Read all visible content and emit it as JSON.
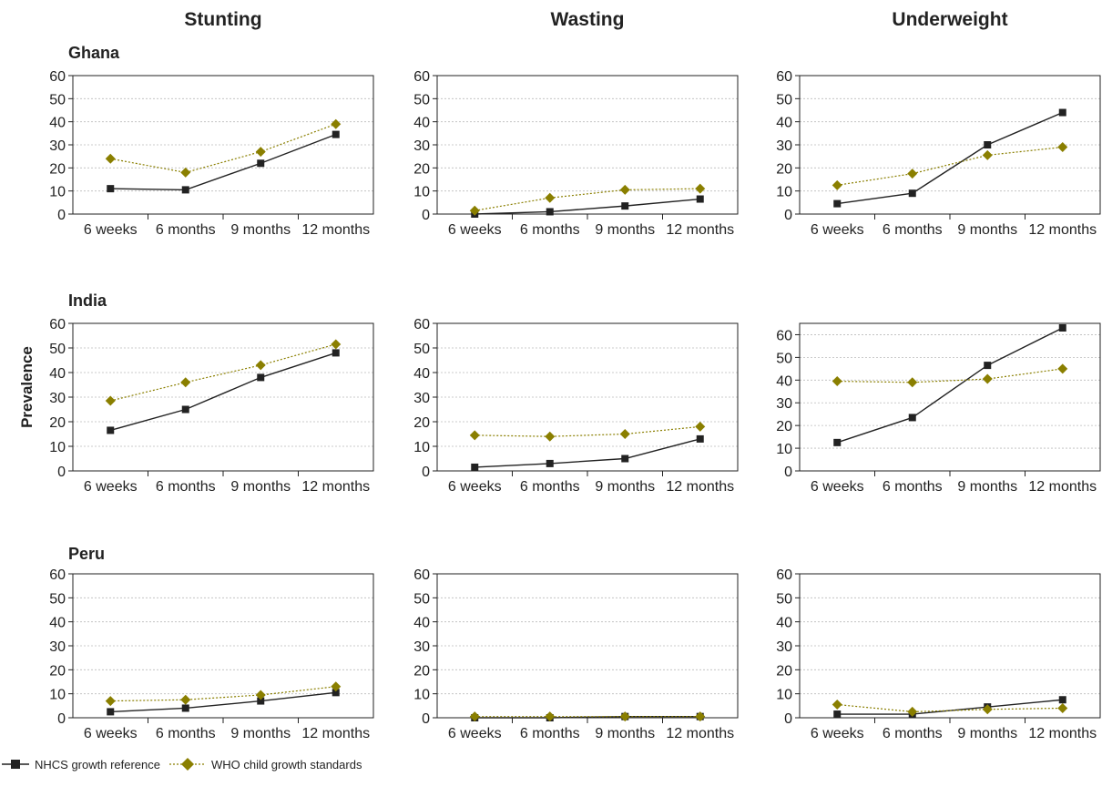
{
  "ylabel": "Prevalence",
  "columns": [
    "Stunting",
    "Wasting",
    "Underweight"
  ],
  "rows": [
    "Ghana",
    "India",
    "Peru"
  ],
  "colors": {
    "nhcs": "#222222",
    "who": "#8a7f00"
  },
  "legend": [
    {
      "key": "nhcs",
      "label": "NHCS growth reference"
    },
    {
      "key": "who",
      "label": "WHO child growth standards"
    }
  ],
  "chart_data": [
    {
      "type": "line",
      "title": "Stunting",
      "subtitle": "Ghana",
      "x": [
        "6 weeks",
        "6 months",
        "9 months",
        "12 months"
      ],
      "ylim": [
        0,
        60
      ],
      "yticks": [
        0,
        10,
        20,
        30,
        40,
        50,
        60
      ],
      "series": [
        {
          "name": "NHCS growth reference",
          "values": [
            11,
            10.5,
            22,
            34.5
          ]
        },
        {
          "name": "WHO child growth standards",
          "values": [
            24,
            18,
            27,
            39
          ]
        }
      ]
    },
    {
      "type": "line",
      "title": "Wasting",
      "subtitle": "Ghana",
      "x": [
        "6 weeks",
        "6 months",
        "9 months",
        "12 months"
      ],
      "ylim": [
        0,
        60
      ],
      "yticks": [
        0,
        10,
        20,
        30,
        40,
        50,
        60
      ],
      "series": [
        {
          "name": "NHCS growth reference",
          "values": [
            0,
            1,
            3.5,
            6.5
          ]
        },
        {
          "name": "WHO child growth standards",
          "values": [
            1.5,
            7,
            10.5,
            11
          ]
        }
      ]
    },
    {
      "type": "line",
      "title": "Underweight",
      "subtitle": "Ghana",
      "x": [
        "6 weeks",
        "6 months",
        "9 months",
        "12 months"
      ],
      "ylim": [
        0,
        60
      ],
      "yticks": [
        0,
        10,
        20,
        30,
        40,
        50,
        60
      ],
      "series": [
        {
          "name": "NHCS growth reference",
          "values": [
            4.5,
            9,
            30,
            44
          ]
        },
        {
          "name": "WHO child growth standards",
          "values": [
            12.5,
            17.5,
            25.5,
            29
          ]
        }
      ]
    },
    {
      "type": "line",
      "title": "Stunting",
      "subtitle": "India",
      "x": [
        "6 weeks",
        "6 months",
        "9 months",
        "12 months"
      ],
      "ylim": [
        0,
        60
      ],
      "yticks": [
        0,
        10,
        20,
        30,
        40,
        50,
        60
      ],
      "series": [
        {
          "name": "NHCS growth reference",
          "values": [
            16.5,
            25,
            38,
            48
          ]
        },
        {
          "name": "WHO child growth standards",
          "values": [
            28.5,
            36,
            43,
            51.5
          ]
        }
      ]
    },
    {
      "type": "line",
      "title": "Wasting",
      "subtitle": "India",
      "x": [
        "6 weeks",
        "6 months",
        "9 months",
        "12 months"
      ],
      "ylim": [
        0,
        60
      ],
      "yticks": [
        0,
        10,
        20,
        30,
        40,
        50,
        60
      ],
      "series": [
        {
          "name": "NHCS growth reference",
          "values": [
            1.5,
            3,
            5,
            13
          ]
        },
        {
          "name": "WHO child growth standards",
          "values": [
            14.5,
            14,
            15,
            18
          ]
        }
      ]
    },
    {
      "type": "line",
      "title": "Underweight",
      "subtitle": "India",
      "x": [
        "6 weeks",
        "6 months",
        "9 months",
        "12 months"
      ],
      "ylim": [
        0,
        65
      ],
      "yticks": [
        0,
        10,
        20,
        30,
        40,
        50,
        60
      ],
      "series": [
        {
          "name": "NHCS growth reference",
          "values": [
            12.5,
            23.5,
            46.5,
            63
          ]
        },
        {
          "name": "WHO child growth standards",
          "values": [
            39.5,
            39,
            40.5,
            45
          ]
        }
      ]
    },
    {
      "type": "line",
      "title": "Stunting",
      "subtitle": "Peru",
      "x": [
        "6 weeks",
        "6 months",
        "9 months",
        "12 months"
      ],
      "ylim": [
        0,
        60
      ],
      "yticks": [
        0,
        10,
        20,
        30,
        40,
        50,
        60
      ],
      "series": [
        {
          "name": "NHCS growth reference",
          "values": [
            2.5,
            4,
            7,
            10.5
          ]
        },
        {
          "name": "WHO child growth standards",
          "values": [
            7,
            7.5,
            9.5,
            13
          ]
        }
      ]
    },
    {
      "type": "line",
      "title": "Wasting",
      "subtitle": "Peru",
      "x": [
        "6 weeks",
        "6 months",
        "9 months",
        "12 months"
      ],
      "ylim": [
        0,
        60
      ],
      "yticks": [
        0,
        10,
        20,
        30,
        40,
        50,
        60
      ],
      "series": [
        {
          "name": "NHCS growth reference",
          "values": [
            0,
            0,
            0.5,
            0.5
          ]
        },
        {
          "name": "WHO child growth standards",
          "values": [
            0.5,
            0.5,
            0.5,
            0.5
          ]
        }
      ]
    },
    {
      "type": "line",
      "title": "Underweight",
      "subtitle": "Peru",
      "x": [
        "6 weeks",
        "6 months",
        "9 months",
        "12 months"
      ],
      "ylim": [
        0,
        60
      ],
      "yticks": [
        0,
        10,
        20,
        30,
        40,
        50,
        60
      ],
      "series": [
        {
          "name": "NHCS growth reference",
          "values": [
            1.5,
            1.5,
            4.5,
            7.5
          ]
        },
        {
          "name": "WHO child growth standards",
          "values": [
            5.5,
            2.5,
            3.5,
            4
          ]
        }
      ]
    }
  ]
}
